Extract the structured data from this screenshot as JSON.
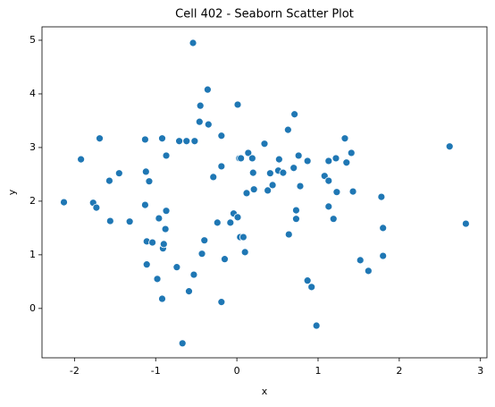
{
  "chart_data": {
    "type": "scatter",
    "title": "Cell 402 - Seaborn Scatter Plot",
    "x_label": "x",
    "y_label": "y",
    "color": "#1f77b4",
    "xlim": [
      -2.4,
      3.08
    ],
    "ylim": [
      -0.92,
      5.25
    ],
    "xticks": [
      -2,
      -1,
      0,
      1,
      2,
      3
    ],
    "yticks": [
      0,
      1,
      2,
      3,
      4,
      5
    ],
    "x": [
      -2.13,
      -1.92,
      -1.77,
      -1.73,
      -1.69,
      -1.57,
      -1.56,
      -1.45,
      -1.32,
      -1.13,
      -1.13,
      -1.12,
      -1.11,
      -1.11,
      -1.08,
      -1.04,
      -0.98,
      -0.96,
      -0.92,
      -0.92,
      -0.91,
      -0.9,
      -0.88,
      -0.87,
      -0.87,
      -0.74,
      -0.71,
      -0.67,
      -0.59,
      -0.62,
      -0.53,
      -0.54,
      -0.52,
      -0.46,
      -0.45,
      -0.43,
      -0.4,
      -0.36,
      -0.35,
      -0.29,
      -0.24,
      -0.19,
      -0.19,
      -0.15,
      -0.19,
      -0.08,
      -0.04,
      0.01,
      0.01,
      0.03,
      0.05,
      0.04,
      0.08,
      0.1,
      0.12,
      0.14,
      0.19,
      0.2,
      0.21,
      0.34,
      0.38,
      0.41,
      0.44,
      0.51,
      0.52,
      0.57,
      0.63,
      0.64,
      0.7,
      0.71,
      0.73,
      0.73,
      0.76,
      0.78,
      0.87,
      0.87,
      0.92,
      0.98,
      1.08,
      1.13,
      1.13,
      1.13,
      1.19,
      1.22,
      1.23,
      1.33,
      1.35,
      1.41,
      1.43,
      1.52,
      1.62,
      1.78,
      1.8,
      1.8,
      2.62,
      2.82
    ],
    "y": [
      1.98,
      2.78,
      1.97,
      1.88,
      3.17,
      2.38,
      1.63,
      2.52,
      1.62,
      3.15,
      1.93,
      2.55,
      1.25,
      0.82,
      2.37,
      1.23,
      0.55,
      1.68,
      3.17,
      0.18,
      1.12,
      1.2,
      1.48,
      1.82,
      2.85,
      0.77,
      3.12,
      -0.65,
      0.32,
      3.12,
      0.63,
      4.95,
      3.12,
      3.48,
      3.78,
      1.02,
      1.27,
      4.08,
      3.43,
      2.45,
      1.6,
      3.22,
      2.65,
      0.92,
      0.12,
      1.6,
      1.77,
      3.8,
      1.7,
      2.8,
      2.8,
      1.33,
      1.33,
      1.05,
      2.15,
      2.9,
      2.8,
      2.53,
      2.22,
      3.07,
      2.2,
      2.52,
      2.3,
      2.57,
      2.78,
      2.53,
      3.33,
      1.38,
      2.62,
      3.62,
      1.67,
      1.83,
      2.85,
      2.28,
      2.75,
      0.52,
      0.4,
      -0.32,
      2.47,
      2.75,
      2.38,
      1.9,
      1.67,
      2.8,
      2.17,
      3.17,
      2.72,
      2.9,
      2.18,
      0.9,
      0.7,
      2.08,
      1.5,
      0.98,
      3.02,
      1.58
    ]
  }
}
